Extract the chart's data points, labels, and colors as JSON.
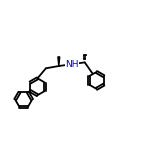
{
  "bg_color": "#ffffff",
  "line_color": "#000000",
  "N_color": "#0000cc",
  "bond_lw": 1.3,
  "font_size": 6.5,
  "figsize": [
    1.52,
    1.52
  ],
  "dpi": 100,
  "xlim": [
    -9,
    9
  ],
  "ylim": [
    -6.5,
    6.5
  ]
}
